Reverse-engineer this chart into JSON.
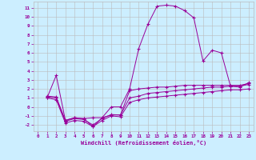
{
  "xlabel": "Windchill (Refroidissement éolien,°C)",
  "bg_color": "#cceeff",
  "line_color": "#990099",
  "grid_color": "#bbbbbb",
  "xlim": [
    -0.5,
    23.5
  ],
  "ylim": [
    -2.7,
    11.7
  ],
  "xticks": [
    0,
    1,
    2,
    3,
    4,
    5,
    6,
    7,
    8,
    9,
    10,
    11,
    12,
    13,
    14,
    15,
    16,
    17,
    18,
    19,
    20,
    21,
    22,
    23
  ],
  "yticks": [
    -2,
    -1,
    0,
    1,
    2,
    3,
    4,
    5,
    6,
    7,
    8,
    9,
    10,
    11
  ],
  "curve1_x": [
    1,
    2,
    3,
    4,
    5,
    6,
    7,
    8,
    9,
    10,
    11,
    12,
    13,
    14,
    15,
    16,
    17,
    18,
    19,
    20,
    21,
    22,
    23
  ],
  "curve1_y": [
    1.0,
    3.5,
    -1.5,
    -1.2,
    -1.3,
    -2.2,
    -1.2,
    0.0,
    0.0,
    2.0,
    6.5,
    9.2,
    11.2,
    11.3,
    11.2,
    10.7,
    9.9,
    5.1,
    6.3,
    6.0,
    2.3,
    2.2,
    2.7
  ],
  "curve2_x": [
    1,
    2,
    3,
    4,
    5,
    6,
    7,
    8,
    9,
    10,
    11,
    12,
    13,
    14,
    15,
    16,
    17,
    18,
    19,
    20,
    21,
    22,
    23
  ],
  "curve2_y": [
    1.2,
    1.1,
    -1.5,
    -1.2,
    -1.3,
    -1.2,
    -1.2,
    -0.9,
    -0.9,
    1.8,
    2.0,
    2.1,
    2.2,
    2.2,
    2.3,
    2.4,
    2.4,
    2.4,
    2.4,
    2.4,
    2.4,
    2.4,
    2.6
  ],
  "curve3_x": [
    1,
    2,
    3,
    4,
    5,
    6,
    7,
    8,
    9,
    10,
    11,
    12,
    13,
    14,
    15,
    16,
    17,
    18,
    19,
    20,
    21,
    22,
    23
  ],
  "curve3_y": [
    1.1,
    1.0,
    -1.6,
    -1.3,
    -1.4,
    -2.0,
    -1.3,
    -0.85,
    -0.9,
    1.0,
    1.2,
    1.5,
    1.6,
    1.7,
    1.8,
    1.9,
    2.0,
    2.1,
    2.2,
    2.2,
    2.3,
    2.3,
    2.5
  ],
  "curve4_x": [
    1,
    2,
    3,
    4,
    5,
    6,
    7,
    8,
    9,
    10,
    11,
    12,
    13,
    14,
    15,
    16,
    17,
    18,
    19,
    20,
    21,
    22,
    23
  ],
  "curve4_y": [
    1.0,
    0.8,
    -1.8,
    -1.5,
    -1.6,
    -2.2,
    -1.5,
    -1.0,
    -1.1,
    0.5,
    0.8,
    1.0,
    1.1,
    1.2,
    1.3,
    1.4,
    1.5,
    1.6,
    1.7,
    1.8,
    1.9,
    1.9,
    2.0
  ]
}
